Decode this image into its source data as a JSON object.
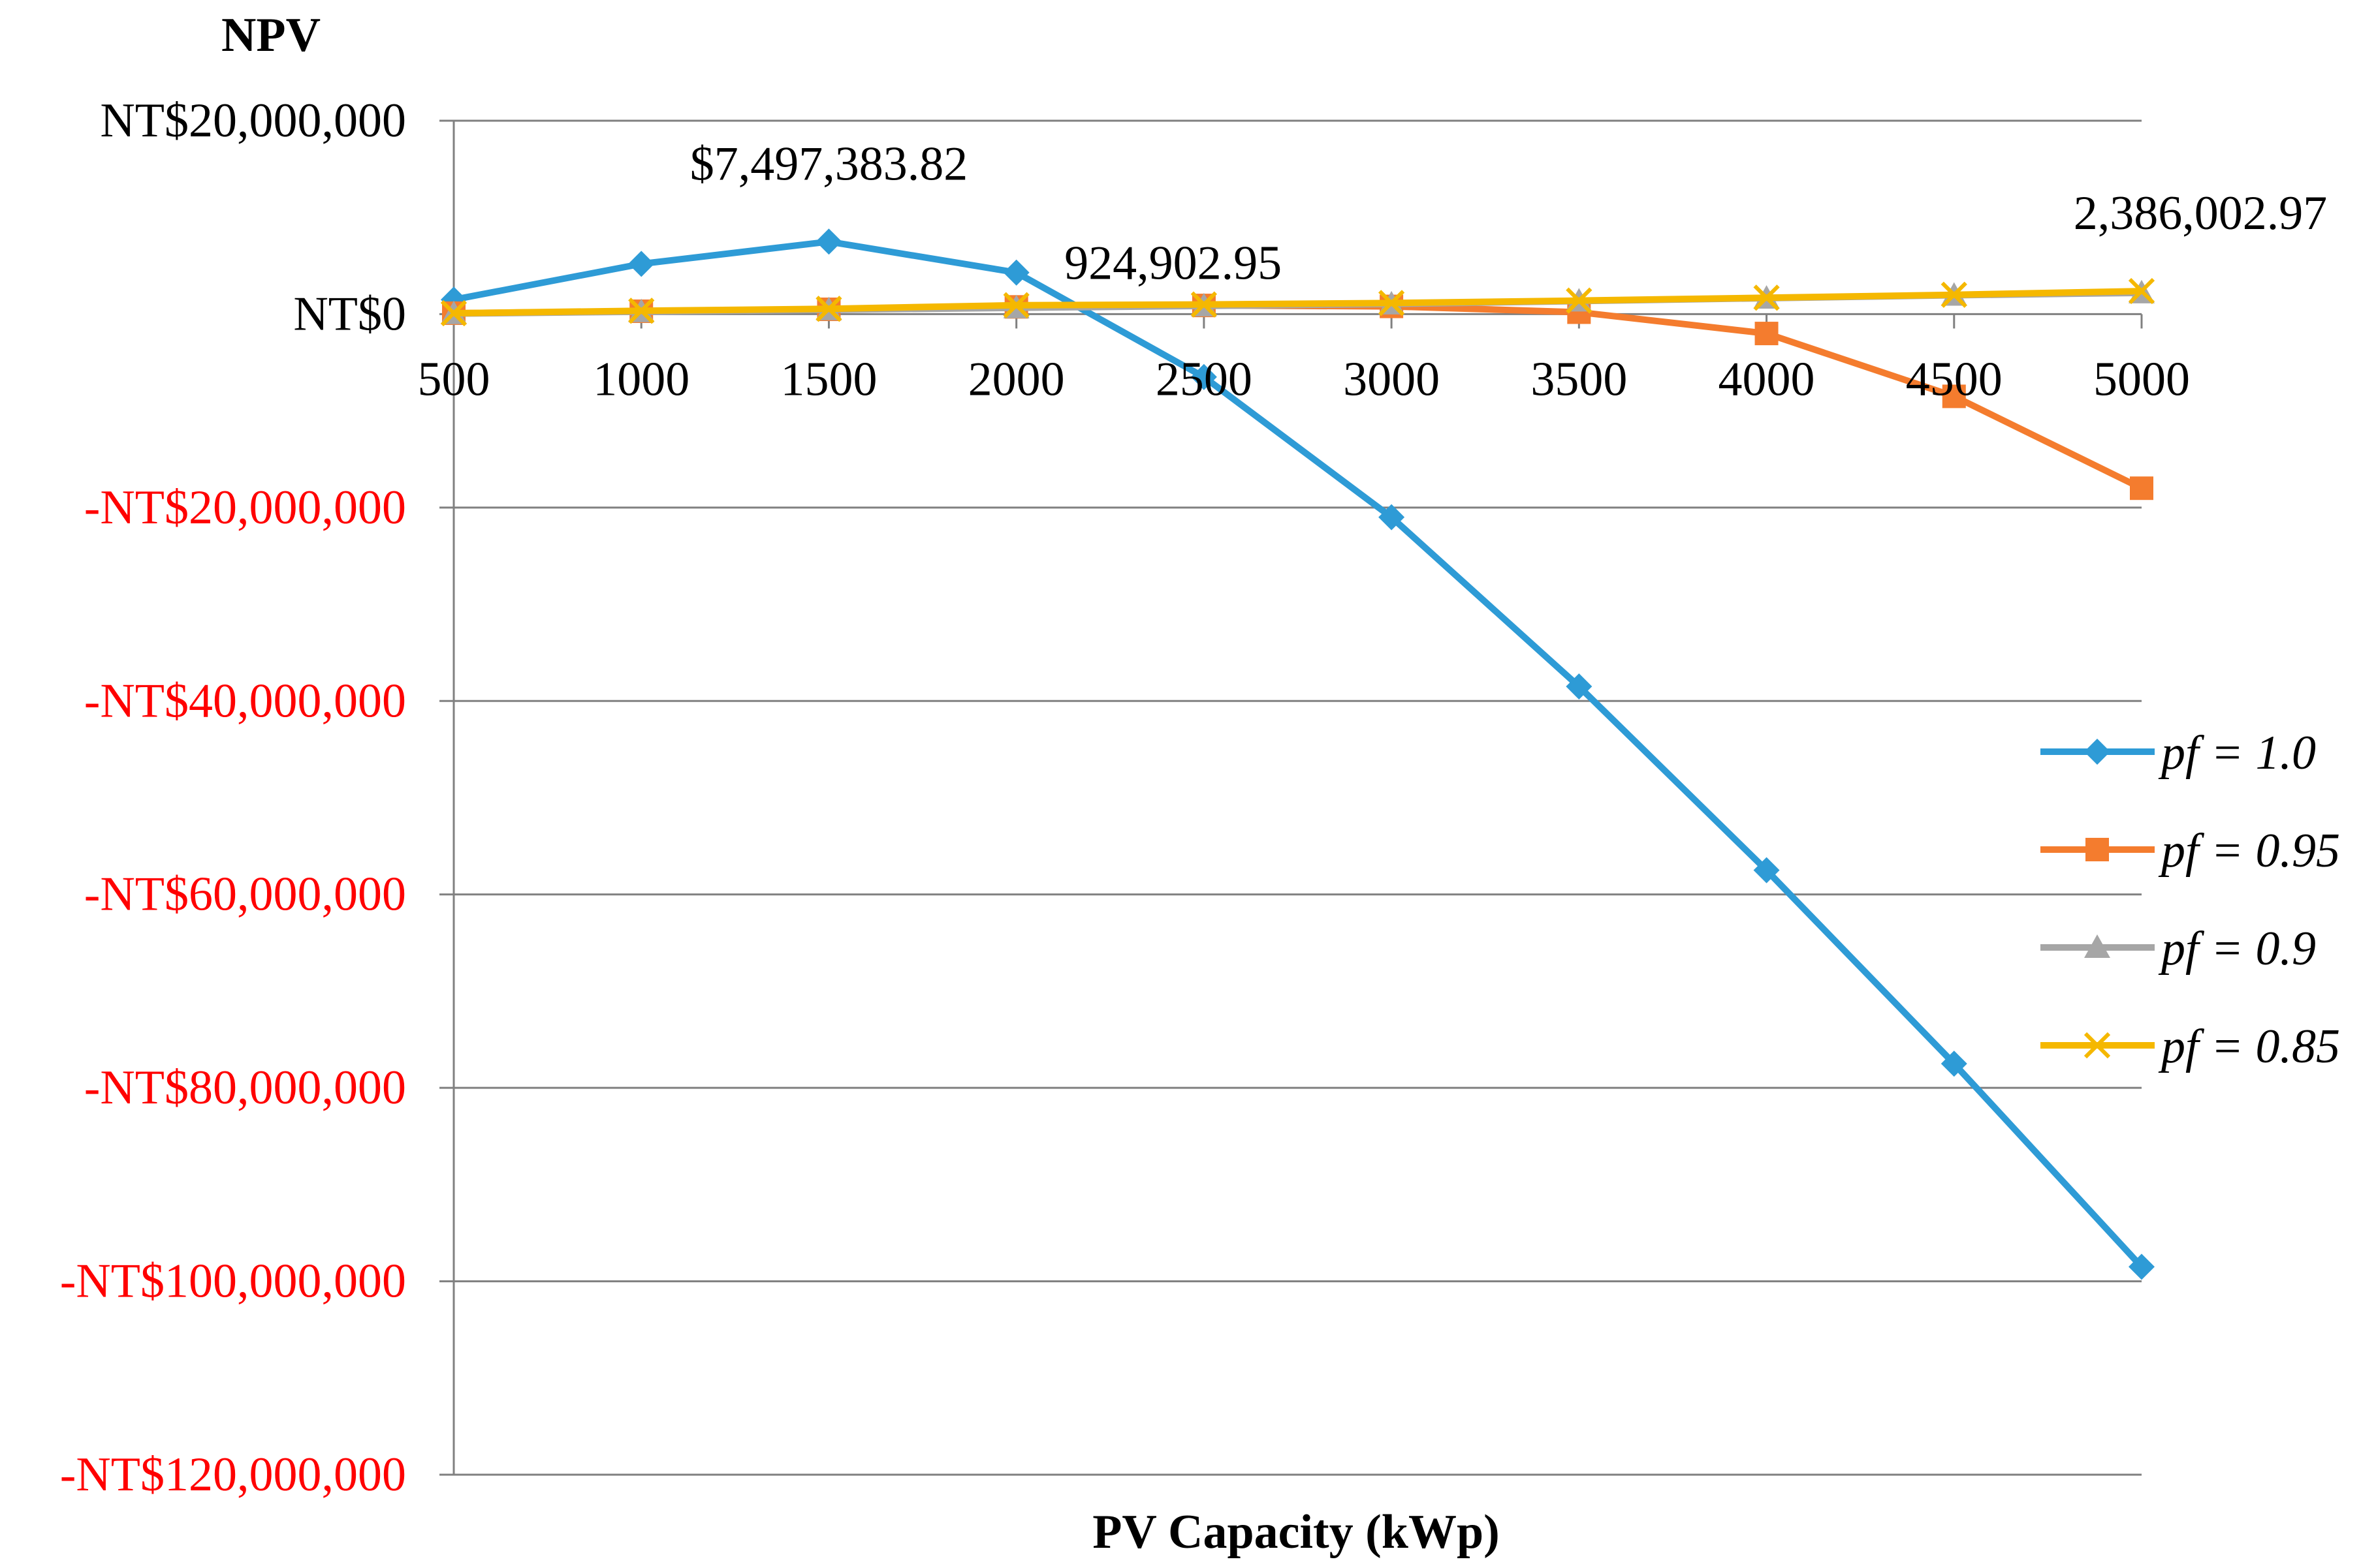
{
  "chart_data": {
    "type": "line",
    "ylabel": "NPV",
    "xlabel": "PV Capacity (kWp)",
    "x": [
      500,
      1000,
      1500,
      2000,
      2500,
      3000,
      3500,
      4000,
      4500,
      5000
    ],
    "x_tick_labels": [
      "500",
      "1000",
      "1500",
      "2000",
      "2500",
      "3000",
      "3500",
      "4000",
      "4500",
      "5000"
    ],
    "ylim": [
      -120000000,
      20000000
    ],
    "y_ticks": [
      20000000,
      0,
      -20000000,
      -40000000,
      -60000000,
      -80000000,
      -100000000,
      -120000000
    ],
    "y_tick_labels": [
      "NT$20,000,000",
      "NT$0",
      "-NT$20,000,000",
      "-NT$40,000,000",
      "-NT$60,000,000",
      "-NT$80,000,000",
      "-NT$100,000,000",
      "-NT$120,000,000"
    ],
    "grid": true,
    "legend_position": "right",
    "series": [
      {
        "name": "pf = 1.0",
        "color": "#2E9BD6",
        "marker": "diamond",
        "values": [
          1500000,
          5200000,
          7497383.82,
          4300000,
          -6500000,
          -21000000,
          -38500000,
          -57500000,
          -77500000,
          -98500000
        ]
      },
      {
        "name": "pf = 0.95",
        "color": "#F47C2E",
        "marker": "square",
        "values": [
          100000,
          300000,
          500000,
          750000,
          900000,
          800000,
          200000,
          -2000000,
          -8500000,
          -18000000
        ]
      },
      {
        "name": "pf = 0.9",
        "color": "#A6A6A6",
        "marker": "triangle",
        "values": [
          50000,
          250000,
          450000,
          650000,
          850000,
          1050000,
          1350000,
          1650000,
          1950000,
          2200000
        ]
      },
      {
        "name": "pf = 0.85",
        "color": "#F5B800",
        "marker": "x",
        "values": [
          100000,
          350000,
          550000,
          924902.95,
          1000000,
          1150000,
          1400000,
          1700000,
          2000000,
          2386002.97
        ]
      }
    ],
    "annotations": [
      {
        "text": "$7,497,383.82",
        "series": 0,
        "index": 2
      },
      {
        "text": "924,902.95",
        "series": 3,
        "index": 3
      },
      {
        "text": "2,386,002.97",
        "series": 3,
        "index": 9
      }
    ],
    "colors": {
      "axis": "#808080",
      "negative_label": "#FF0000",
      "text": "#000000"
    }
  }
}
